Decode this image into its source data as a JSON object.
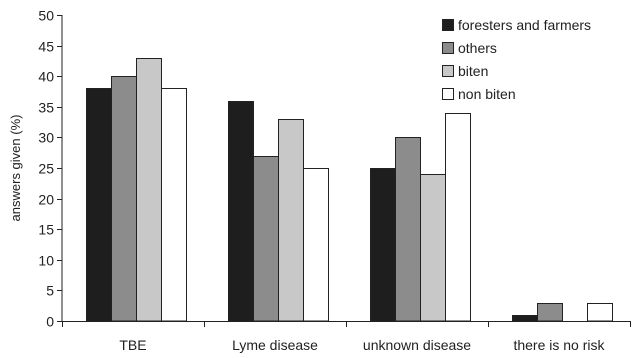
{
  "chart_data": {
    "type": "bar",
    "title": "",
    "xlabel": "",
    "ylabel": "answers given (%)",
    "ylim": [
      0,
      50
    ],
    "yticks": [
      0,
      5,
      10,
      15,
      20,
      25,
      30,
      35,
      40,
      45,
      50
    ],
    "categories": [
      "TBE",
      "Lyme disease",
      "unknown disease",
      "there is no risk"
    ],
    "series": [
      {
        "name": "foresters and farmers",
        "color": "#1e1e1e",
        "values": [
          38,
          36,
          25,
          1
        ]
      },
      {
        "name": "others",
        "color": "#8c8c8c",
        "values": [
          40,
          27,
          30,
          3
        ]
      },
      {
        "name": "biten",
        "color": "#c8c8c8",
        "values": [
          43,
          33,
          24,
          0
        ]
      },
      {
        "name": "non biten",
        "color": "#ffffff",
        "values": [
          38,
          25,
          34,
          3
        ]
      }
    ],
    "legend_position": "top-right",
    "grid": false
  }
}
